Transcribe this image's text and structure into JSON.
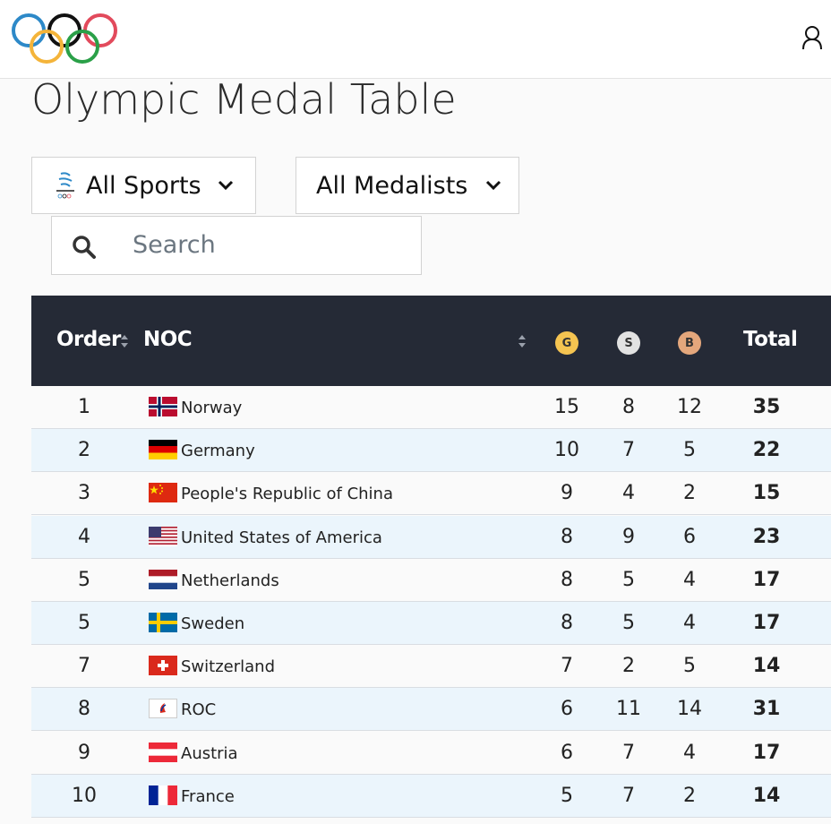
{
  "title": "Olympic Medal Table",
  "filters": [
    "All Sports",
    "All Medalists"
  ],
  "search": {
    "placeholder": "Search"
  },
  "table": {
    "headers": [
      "Order",
      "NOC",
      "G",
      "S",
      "B",
      "Total"
    ],
    "rows": [
      [
        1,
        "Norway",
        15,
        8,
        12,
        35
      ],
      [
        2,
        "Germany",
        10,
        7,
        5,
        22
      ],
      [
        3,
        "People's Republic of China",
        9,
        4,
        2,
        15
      ],
      [
        4,
        "United States of America",
        8,
        9,
        6,
        23
      ],
      [
        5,
        "Netherlands",
        8,
        5,
        4,
        17
      ],
      [
        5,
        "Sweden",
        8,
        5,
        4,
        17
      ],
      [
        7,
        "Switzerland",
        7,
        2,
        5,
        14
      ],
      [
        8,
        "ROC",
        6,
        11,
        14,
        31
      ],
      [
        9,
        "Austria",
        6,
        7,
        4,
        17
      ],
      [
        10,
        "France",
        5,
        7,
        2,
        14
      ]
    ]
  }
}
